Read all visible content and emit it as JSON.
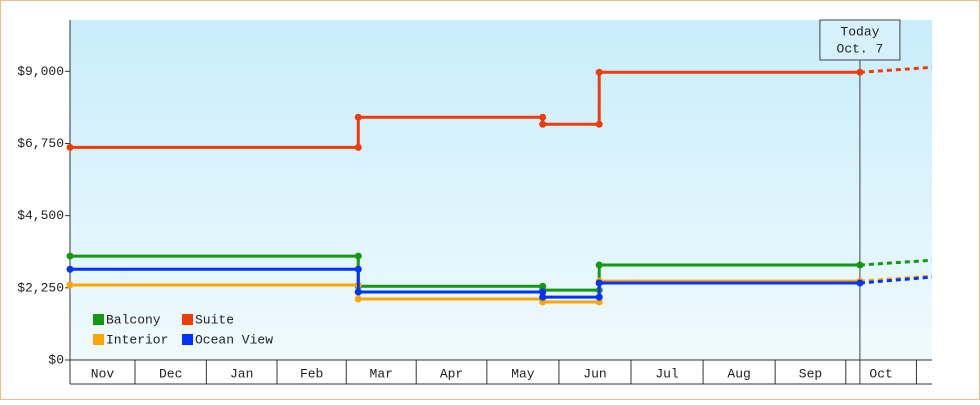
{
  "chart_data": {
    "type": "step-line",
    "x": [
      0,
      4.08,
      4.08,
      6.69,
      6.69,
      7.49,
      7.49,
      11.18
    ],
    "forecast_x": [
      11.18,
      12.2
    ],
    "xlim": [
      0,
      12.2
    ],
    "xticks": [
      {
        "value": 0,
        "label": "Nov"
      },
      {
        "value": 0.92,
        "label": "Dec"
      },
      {
        "value": 1.93,
        "label": "Jan"
      },
      {
        "value": 2.93,
        "label": "Feb"
      },
      {
        "value": 3.91,
        "label": "Mar"
      },
      {
        "value": 4.9,
        "label": "Apr"
      },
      {
        "value": 5.9,
        "label": "May"
      },
      {
        "value": 6.92,
        "label": "Jun"
      },
      {
        "value": 7.94,
        "label": "Jul"
      },
      {
        "value": 8.96,
        "label": "Aug"
      },
      {
        "value": 9.98,
        "label": "Sep"
      },
      {
        "value": 10.98,
        "label": "Oct"
      }
    ],
    "ylim": [
      0,
      10600
    ],
    "yticks": [
      {
        "value": 0,
        "label": "$0"
      },
      {
        "value": 2250,
        "label": "$2,250"
      },
      {
        "value": 4500,
        "label": "$4,500"
      },
      {
        "value": 6750,
        "label": "$6,750"
      },
      {
        "value": 9000,
        "label": "$9,000"
      }
    ],
    "series": [
      {
        "name": "Balcony",
        "color": "#119911",
        "values": [
          3240,
          3240,
          2300,
          2300,
          2180,
          2180,
          2960,
          2960
        ],
        "forecast": [
          2960,
          3110
        ]
      },
      {
        "name": "Suite",
        "color": "#f03c0a",
        "values": [
          6630,
          6630,
          7570,
          7570,
          7350,
          7350,
          8970,
          8970
        ],
        "forecast": [
          8970,
          9125
        ]
      },
      {
        "name": "Interior",
        "color": "#ffa500",
        "values": [
          2340,
          2340,
          1900,
          1900,
          1810,
          1810,
          2460,
          2460
        ],
        "forecast": [
          2460,
          2616
        ]
      },
      {
        "name": "Ocean View",
        "color": "#0033ff",
        "values": [
          2830,
          2830,
          2120,
          2120,
          1960,
          1960,
          2400,
          2400
        ],
        "forecast": [
          2400,
          2585
        ]
      }
    ],
    "annotation": {
      "x": 11.18,
      "lines": [
        "Today",
        "Oct. 7"
      ]
    }
  }
}
